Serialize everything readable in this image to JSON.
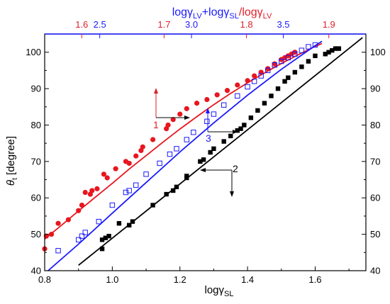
{
  "chart_data": {
    "type": "scatter",
    "xlabel": "logγ",
    "xlabel_sub": "SL",
    "ylabel_theta": "θ",
    "ylabel_sub": "t",
    "ylabel_unit": " [degree]",
    "top_label": {
      "part1": "logγ",
      "part1_sub": "LV",
      "part2": "+logγ",
      "part2_sub": "SL",
      "sep": "/",
      "part3": "logγ",
      "part3_sub": "LV"
    },
    "x_range": [
      0.8,
      1.75
    ],
    "y_range": [
      40,
      105
    ],
    "x_ticks": [
      "0.8",
      "1.0",
      "1.2",
      "1.4",
      "1.6"
    ],
    "y_ticks": [
      "40",
      "50",
      "60",
      "70",
      "80",
      "90",
      "100"
    ],
    "y_ticks_right": [
      "40",
      "50",
      "60",
      "70",
      "80",
      "90",
      "100"
    ],
    "top_blue_ticks": [
      "2.5",
      "3.0",
      "3.5"
    ],
    "top_red_ticks": [
      "1.6",
      "1.7",
      "1.8",
      "1.9"
    ],
    "annotations": [
      "1",
      "2",
      "3"
    ],
    "colors": {
      "series1": "#e8161e",
      "series2": "#000000",
      "series3": "#1a1aff"
    },
    "series": [
      {
        "marker": "filled-circle",
        "points": [
          [
            0.8,
            46
          ],
          [
            0.805,
            49.5
          ],
          [
            0.82,
            50
          ],
          [
            0.84,
            53
          ],
          [
            0.87,
            54
          ],
          [
            0.9,
            56.5
          ],
          [
            0.91,
            58
          ],
          [
            0.92,
            61.5
          ],
          [
            0.935,
            61
          ],
          [
            0.94,
            62
          ],
          [
            0.955,
            62.5
          ],
          [
            0.975,
            66.5
          ],
          [
            0.985,
            65.5
          ],
          [
            1.01,
            68
          ],
          [
            1.04,
            70
          ],
          [
            1.05,
            69.5
          ],
          [
            1.07,
            71.5
          ],
          [
            1.085,
            73
          ],
          [
            1.09,
            74
          ],
          [
            1.12,
            76
          ],
          [
            1.16,
            79
          ],
          [
            1.165,
            80
          ],
          [
            1.18,
            81.5
          ],
          [
            1.2,
            83
          ],
          [
            1.22,
            84.5
          ],
          [
            1.25,
            86
          ],
          [
            1.28,
            87
          ],
          [
            1.31,
            88.3
          ],
          [
            1.34,
            89.5
          ],
          [
            1.37,
            91
          ],
          [
            1.4,
            92.2
          ],
          [
            1.42,
            93.5
          ],
          [
            1.44,
            94.5
          ],
          [
            1.46,
            95.5
          ],
          [
            1.48,
            96.8
          ],
          [
            1.5,
            98
          ],
          [
            1.51,
            98.5
          ],
          [
            1.52,
            99
          ],
          [
            1.53,
            99.5
          ],
          [
            1.54,
            100
          ]
        ],
        "fit": [
          [
            0.8,
            48.7
          ],
          [
            0.85,
            52.5
          ],
          [
            0.9,
            56.4
          ],
          [
            0.95,
            60.2
          ],
          [
            1.0,
            64
          ],
          [
            1.05,
            67.9
          ],
          [
            1.1,
            71.6
          ],
          [
            1.15,
            75.3
          ],
          [
            1.2,
            78.9
          ],
          [
            1.25,
            82.3
          ],
          [
            1.3,
            85.6
          ],
          [
            1.35,
            88.7
          ],
          [
            1.4,
            91.6
          ],
          [
            1.45,
            94.3
          ],
          [
            1.5,
            96.9
          ],
          [
            1.55,
            99.3
          ],
          [
            1.6,
            101.6
          ],
          [
            1.62,
            102.4
          ]
        ]
      },
      {
        "marker": "filled-square",
        "points": [
          [
            0.97,
            46
          ],
          [
            0.97,
            48.5
          ],
          [
            0.98,
            49
          ],
          [
            0.99,
            49.5
          ],
          [
            1.02,
            53
          ],
          [
            1.05,
            52.5
          ],
          [
            1.06,
            53.5
          ],
          [
            1.12,
            58
          ],
          [
            1.16,
            61
          ],
          [
            1.18,
            62
          ],
          [
            1.19,
            63
          ],
          [
            1.22,
            65.5
          ],
          [
            1.22,
            66
          ],
          [
            1.26,
            70
          ],
          [
            1.27,
            70.5
          ],
          [
            1.29,
            72.5
          ],
          [
            1.3,
            73.5
          ],
          [
            1.33,
            75.5
          ],
          [
            1.35,
            77
          ],
          [
            1.37,
            78.5
          ],
          [
            1.38,
            79
          ],
          [
            1.39,
            80
          ],
          [
            1.41,
            82
          ],
          [
            1.43,
            84
          ],
          [
            1.45,
            86
          ],
          [
            1.47,
            88
          ],
          [
            1.49,
            90
          ],
          [
            1.51,
            92
          ],
          [
            1.52,
            93
          ],
          [
            1.54,
            94.5
          ],
          [
            1.56,
            96
          ],
          [
            1.58,
            97.5
          ],
          [
            1.6,
            99
          ],
          [
            1.63,
            99.5
          ],
          [
            1.64,
            100
          ],
          [
            1.65,
            100.5
          ],
          [
            1.66,
            101
          ],
          [
            1.67,
            101
          ]
        ],
        "fit": [
          [
            0.9,
            41.5
          ],
          [
            1.74,
            104
          ]
        ]
      },
      {
        "marker": "open-square",
        "points": [
          [
            0.84,
            45.5
          ],
          [
            0.9,
            48.5
          ],
          [
            0.91,
            49.5
          ],
          [
            0.92,
            50.5
          ],
          [
            0.96,
            53.5
          ],
          [
            1.0,
            58
          ],
          [
            1.04,
            61.5
          ],
          [
            1.05,
            62
          ],
          [
            1.07,
            63.5
          ],
          [
            1.1,
            66.5
          ],
          [
            1.14,
            69.5
          ],
          [
            1.17,
            72
          ],
          [
            1.19,
            73.5
          ],
          [
            1.22,
            76
          ],
          [
            1.24,
            78
          ],
          [
            1.28,
            81
          ],
          [
            1.3,
            83
          ],
          [
            1.33,
            85.5
          ],
          [
            1.37,
            88
          ],
          [
            1.4,
            90.5
          ],
          [
            1.42,
            92
          ],
          [
            1.44,
            93.5
          ],
          [
            1.46,
            95
          ],
          [
            1.48,
            96.5
          ],
          [
            1.5,
            97.5
          ],
          [
            1.52,
            98.5
          ],
          [
            1.54,
            99.5
          ],
          [
            1.56,
            100.5
          ],
          [
            1.58,
            101.5
          ],
          [
            1.6,
            102
          ]
        ],
        "fit": [
          [
            0.81,
            40
          ],
          [
            0.9,
            47.3
          ],
          [
            1.0,
            55.8
          ],
          [
            1.1,
            64.2
          ],
          [
            1.2,
            72.6
          ],
          [
            1.3,
            80.6
          ],
          [
            1.4,
            88.2
          ],
          [
            1.5,
            95.3
          ],
          [
            1.6,
            101.8
          ],
          [
            1.62,
            103
          ]
        ]
      }
    ]
  }
}
